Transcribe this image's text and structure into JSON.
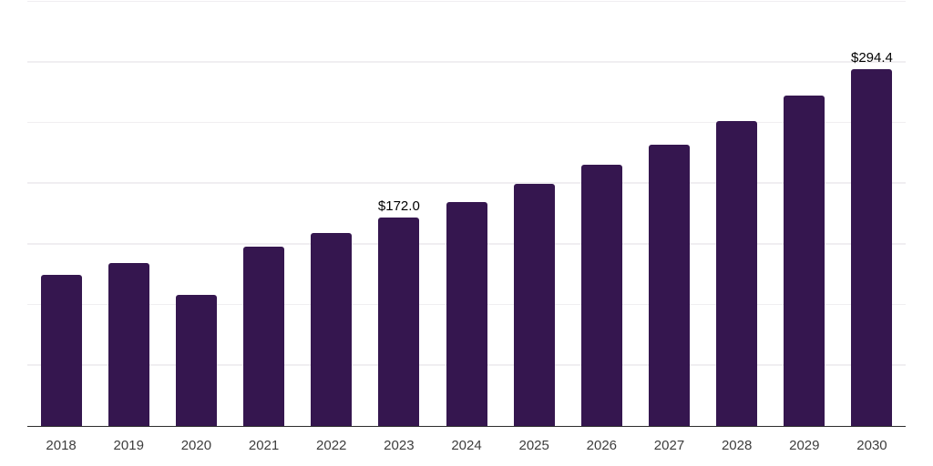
{
  "chart_data": {
    "type": "bar",
    "title": "",
    "categories": [
      "2018",
      "2019",
      "2020",
      "2021",
      "2022",
      "2023",
      "2024",
      "2025",
      "2026",
      "2027",
      "2028",
      "2029",
      "2030"
    ],
    "values": [
      124.6,
      133.8,
      107.9,
      147.5,
      158.9,
      172.0,
      184.5,
      199.5,
      215.0,
      232.0,
      251.0,
      272.0,
      294.4
    ],
    "value_labels": [
      null,
      null,
      null,
      null,
      null,
      "$172.0",
      null,
      null,
      null,
      null,
      null,
      null,
      "$294.4"
    ],
    "xlabel": "",
    "ylabel": "",
    "ylim": [
      0,
      350
    ],
    "gridline_step": 50,
    "grid": true,
    "y_tick_labels_visible": false,
    "legend_position": "none",
    "bar_color": "#35164f",
    "gridline_color": "#f0eef1",
    "axis_line_color": "#2d2d2d",
    "tick_label_color": "#3d3d3d",
    "value_label_color": "#000000",
    "background_color": "#ffffff"
  }
}
